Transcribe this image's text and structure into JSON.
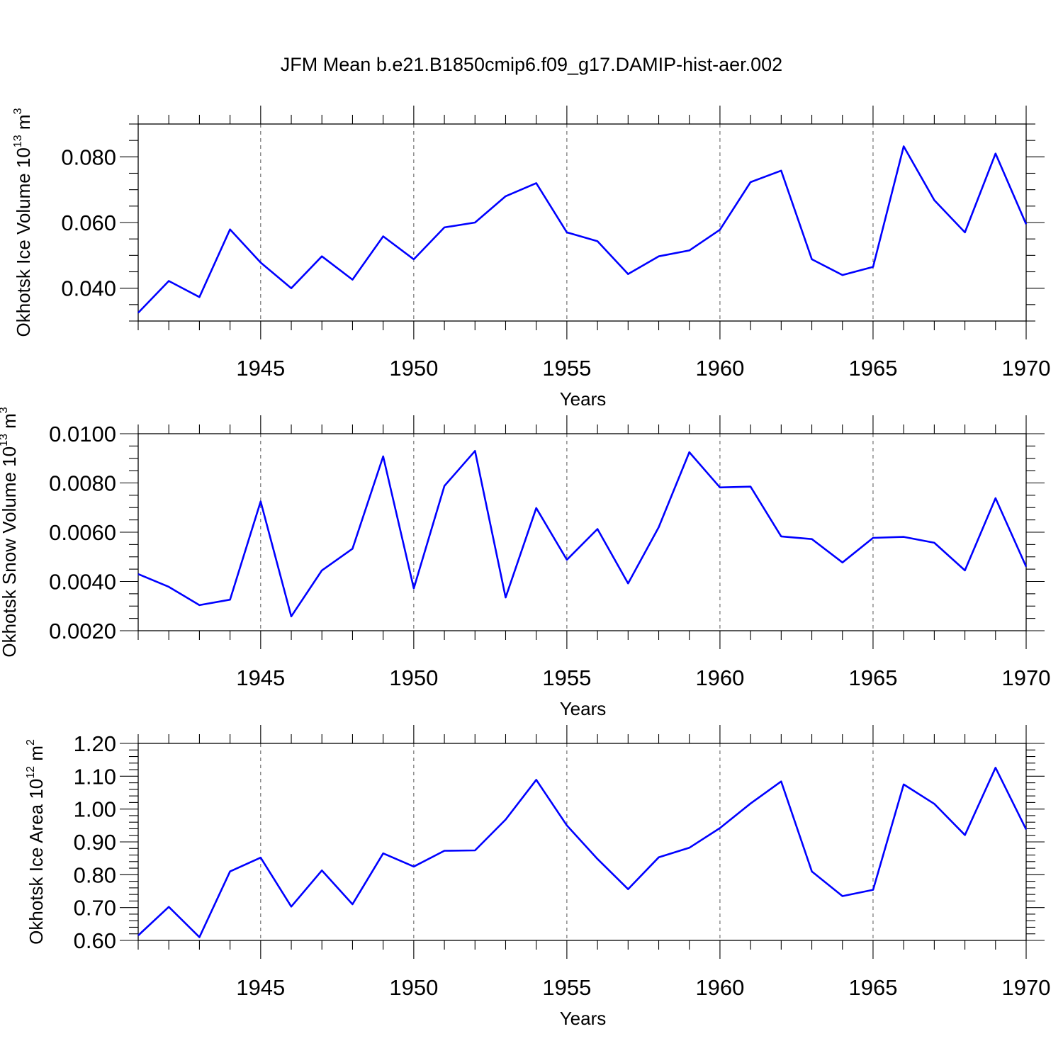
{
  "title": "JFM Mean b.e21.B1850cmip6.f09_g17.DAMIP-hist-aer.002",
  "colors": {
    "line": "#0000ff",
    "axis": "#000000",
    "grid": "#555555"
  },
  "chart_data": [
    {
      "type": "line",
      "ylabel": {
        "text": "Okhotsk Ice Volume 10",
        "sup": "13",
        "unit": " m",
        "unit_sup": "3"
      },
      "xlabel": "Years",
      "xlim": [
        1941,
        1970
      ],
      "ylim": [
        0.03,
        0.09
      ],
      "yticks": [
        0.04,
        0.06,
        0.08
      ],
      "ytick_labels": [
        "0.040",
        "0.060",
        "0.080"
      ],
      "yminor_step": 0.005,
      "xticks": [
        1945,
        1950,
        1955,
        1960,
        1965,
        1970
      ],
      "xtick_labels": [
        "1945",
        "1950",
        "1955",
        "1960",
        "1965",
        "1970"
      ],
      "grid": "x-major-dashed",
      "x": [
        1941,
        1942,
        1943,
        1944,
        1945,
        1946,
        1947,
        1948,
        1949,
        1950,
        1951,
        1952,
        1953,
        1954,
        1955,
        1956,
        1957,
        1958,
        1959,
        1960,
        1961,
        1962,
        1963,
        1964,
        1965,
        1966,
        1967,
        1968,
        1969,
        1970
      ],
      "values": [
        0.0325,
        0.0422,
        0.0373,
        0.0579,
        0.0478,
        0.04,
        0.0497,
        0.0426,
        0.0558,
        0.0488,
        0.0585,
        0.06,
        0.068,
        0.072,
        0.057,
        0.0543,
        0.0443,
        0.0497,
        0.0515,
        0.0578,
        0.0723,
        0.0758,
        0.0488,
        0.044,
        0.0465,
        0.0832,
        0.0668,
        0.057,
        0.081,
        0.0595
      ]
    },
    {
      "type": "line",
      "ylabel": {
        "text": "Okhotsk Snow Volume 10",
        "sup": "13",
        "unit": " m",
        "unit_sup": "3"
      },
      "xlabel": "Years",
      "xlim": [
        1941,
        1970
      ],
      "ylim": [
        0.002,
        0.01
      ],
      "yticks": [
        0.002,
        0.004,
        0.006,
        0.008,
        0.01
      ],
      "ytick_labels": [
        "0.0020",
        "0.0040",
        "0.0060",
        "0.0080",
        "0.0100"
      ],
      "yminor_step": 0.0005,
      "xticks": [
        1945,
        1950,
        1955,
        1960,
        1965,
        1970
      ],
      "xtick_labels": [
        "1945",
        "1950",
        "1955",
        "1960",
        "1965",
        "1970"
      ],
      "grid": "x-major-dashed",
      "x": [
        1941,
        1942,
        1943,
        1944,
        1945,
        1946,
        1947,
        1948,
        1949,
        1950,
        1951,
        1952,
        1953,
        1954,
        1955,
        1956,
        1957,
        1958,
        1959,
        1960,
        1961,
        1962,
        1963,
        1964,
        1965,
        1966,
        1967,
        1968,
        1969,
        1970
      ],
      "values": [
        0.0043,
        0.00378,
        0.00304,
        0.00326,
        0.00725,
        0.00258,
        0.00445,
        0.00533,
        0.00908,
        0.00372,
        0.00788,
        0.0093,
        0.00335,
        0.00698,
        0.00488,
        0.00613,
        0.00392,
        0.0062,
        0.00925,
        0.00782,
        0.00785,
        0.00583,
        0.00572,
        0.00477,
        0.00577,
        0.00581,
        0.00557,
        0.00445,
        0.00738,
        0.0046
      ]
    },
    {
      "type": "line",
      "ylabel": {
        "text": "Okhotsk Ice Area 10",
        "sup": "12",
        "unit": " m",
        "unit_sup": "2"
      },
      "xlabel": "Years",
      "xlim": [
        1941,
        1970
      ],
      "ylim": [
        0.6,
        1.2
      ],
      "yticks": [
        0.6,
        0.7,
        0.8,
        0.9,
        1.0,
        1.1,
        1.2
      ],
      "ytick_labels": [
        "0.60",
        "0.70",
        "0.80",
        "0.90",
        "1.00",
        "1.10",
        "1.20"
      ],
      "yminor_step": 0.02,
      "xticks": [
        1945,
        1950,
        1955,
        1960,
        1965,
        1970
      ],
      "xtick_labels": [
        "1945",
        "1950",
        "1955",
        "1960",
        "1965",
        "1970"
      ],
      "grid": "x-major-dashed",
      "x": [
        1941,
        1942,
        1943,
        1944,
        1945,
        1946,
        1947,
        1948,
        1949,
        1950,
        1951,
        1952,
        1953,
        1954,
        1955,
        1956,
        1957,
        1958,
        1959,
        1960,
        1961,
        1962,
        1963,
        1964,
        1965,
        1966,
        1967,
        1968,
        1969,
        1970
      ],
      "values": [
        0.615,
        0.702,
        0.61,
        0.81,
        0.852,
        0.703,
        0.813,
        0.71,
        0.865,
        0.825,
        0.873,
        0.874,
        0.968,
        1.089,
        0.95,
        0.848,
        0.756,
        0.853,
        0.882,
        0.942,
        1.017,
        1.084,
        0.81,
        0.735,
        0.754,
        1.075,
        1.016,
        0.921,
        1.126,
        0.938
      ]
    }
  ]
}
